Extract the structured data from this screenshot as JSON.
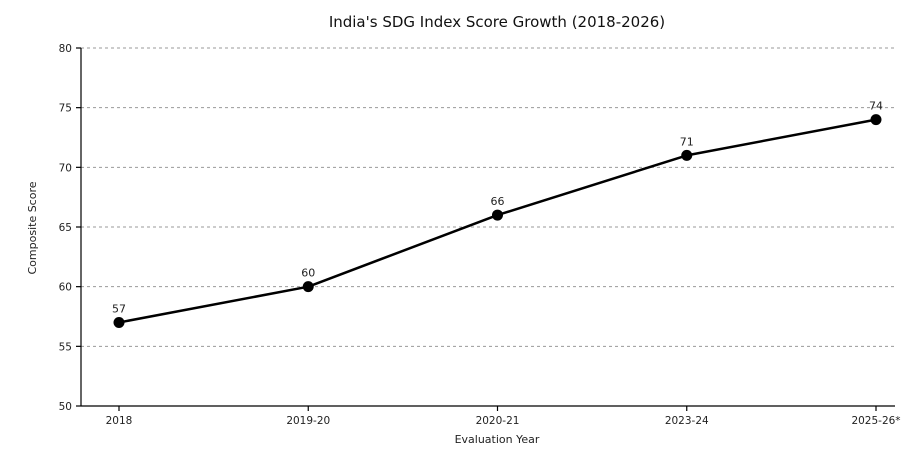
{
  "chart_data": {
    "type": "line",
    "title": "India's SDG Index Score Growth (2018-2026)",
    "xlabel": "Evaluation Year",
    "ylabel": "Composite Score",
    "categories": [
      "2018",
      "2019-20",
      "2020-21",
      "2023-24",
      "2025-26*"
    ],
    "series": [
      {
        "values": [
          57,
          60,
          66,
          71,
          74
        ],
        "color": "#000000"
      }
    ],
    "data_labels": [
      "57",
      "60",
      "66",
      "71",
      "74"
    ],
    "ylim": [
      50,
      80
    ],
    "yticks": [
      50,
      55,
      60,
      65,
      70,
      75,
      80
    ],
    "ytick_labels": [
      "50",
      "55",
      "60",
      "65",
      "70",
      "75",
      "80"
    ],
    "grid": true,
    "grid_axis": "y",
    "marker": "circle",
    "legend": false
  }
}
